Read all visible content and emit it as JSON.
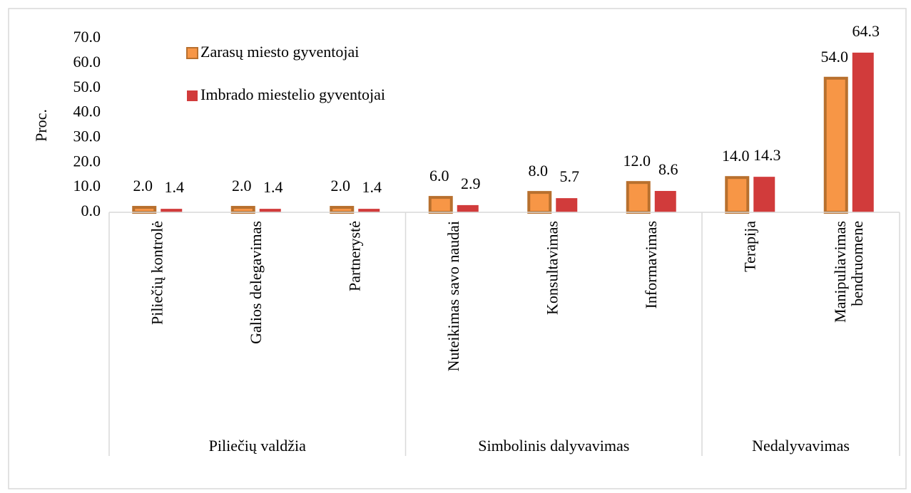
{
  "chart_data": {
    "type": "bar",
    "y_label": "Proc.",
    "categories": [
      "Piliečių kontrolė",
      "Galios delegavimas",
      "Partnerystė",
      "Nuteikimas savo naudai",
      "Konsultavimas",
      "Informavimas",
      "Terapija",
      [
        "Manipuliavimas",
        "bendruomene"
      ]
    ],
    "groups": [
      {
        "name": "Piliečių valdžia",
        "size": 3
      },
      {
        "name": "Simbolinis dalyvavimas",
        "size": 3
      },
      {
        "name": "Nedalyvavimas",
        "size": 2
      }
    ],
    "series": [
      {
        "name": "Zarasų miesto gyventojai",
        "color": "#f79646",
        "stroke": "#b8702e",
        "values": [
          2.0,
          2.0,
          2.0,
          6.0,
          8.0,
          12.0,
          14.0,
          54.0
        ],
        "value_labels": [
          "2.0",
          "2.0",
          "2.0",
          "6.0",
          "8.0",
          "12.0",
          "14.0",
          "54.0"
        ]
      },
      {
        "name": "Imbrado miestelio gyventojai",
        "color": "#d13b3b",
        "stroke": "#d13b3b",
        "values": [
          1.4,
          1.4,
          1.4,
          2.9,
          5.7,
          8.6,
          14.3,
          64.3
        ],
        "value_labels": [
          "1.4",
          "1.4",
          "1.4",
          "2.9",
          "5.7",
          "8.6",
          "14.3",
          "64.3"
        ]
      }
    ],
    "ylim": [
      0,
      70
    ],
    "yticks": [
      {
        "value": 0,
        "label": "0.0"
      },
      {
        "value": 10,
        "label": "10.0"
      },
      {
        "value": 20,
        "label": "20.0"
      },
      {
        "value": 30,
        "label": "30.0"
      },
      {
        "value": 40,
        "label": "40.0"
      },
      {
        "value": 50,
        "label": "50.0"
      },
      {
        "value": 60,
        "label": "60.0"
      },
      {
        "value": 70,
        "label": "70.0"
      }
    ],
    "legend": "upper left",
    "grid": false
  }
}
